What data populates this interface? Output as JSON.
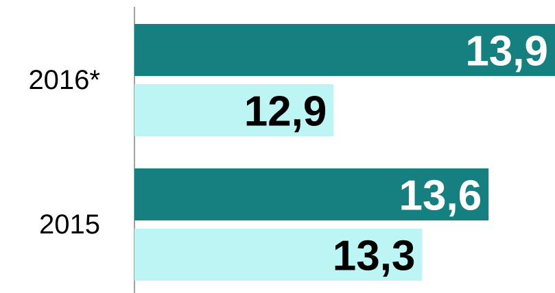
{
  "chart_data": {
    "type": "hbar",
    "categories": [
      "2016*",
      "2015"
    ],
    "series": [
      {
        "color": "#168080",
        "label_color": "#ffffff",
        "values": [
          13.9,
          13.6
        ],
        "value_labels": [
          "13,9",
          "13,6"
        ]
      },
      {
        "color": "#bdf4f4",
        "label_color": "#000000",
        "values": [
          12.9,
          13.3
        ],
        "value_labels": [
          "12,9",
          "13,3"
        ]
      }
    ],
    "xlim": [
      12,
      13.9
    ]
  }
}
